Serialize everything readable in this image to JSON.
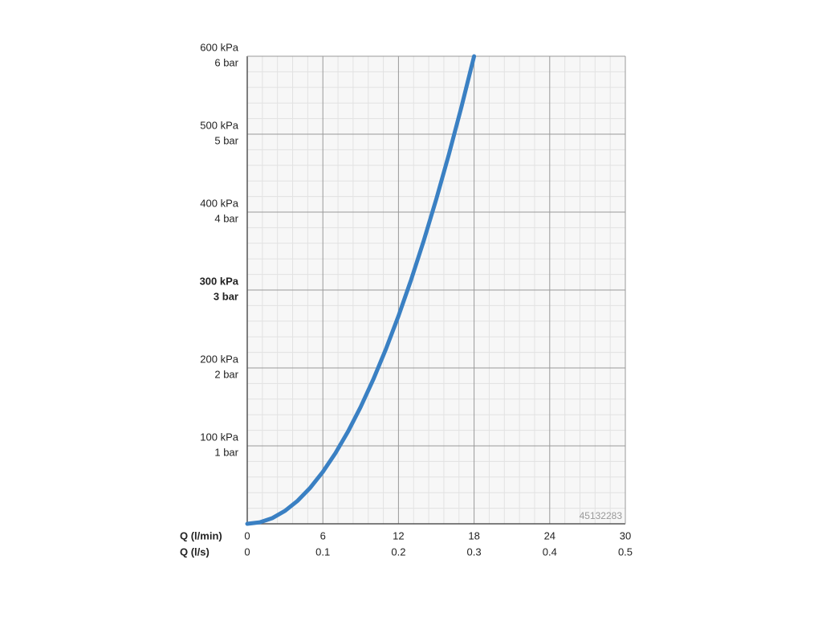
{
  "chart_data": {
    "type": "line",
    "x_label": "Q (l/min)",
    "x2_label": "Q (l/s)",
    "x": [
      0,
      1,
      2,
      3,
      4,
      5,
      6,
      7,
      8,
      9,
      10,
      11,
      12,
      13,
      14,
      15,
      16,
      17,
      18
    ],
    "series": [
      {
        "color": "#3a80c3",
        "values": [
          0,
          1.9,
          7.4,
          16.7,
          29.6,
          46.3,
          66.7,
          90.7,
          118.5,
          150,
          185.2,
          224.1,
          266.7,
          313,
          363,
          416.7,
          474.1,
          535.2,
          600
        ]
      }
    ],
    "xlim": [
      0,
      30
    ],
    "ylim": [
      0,
      600
    ],
    "xticks": [
      0,
      6,
      12,
      18,
      24,
      30
    ],
    "x2ticks": [
      {
        "value": 0,
        "label": "0"
      },
      {
        "value": 6,
        "label": "0.1"
      },
      {
        "value": 12,
        "label": "0.2"
      },
      {
        "value": 18,
        "label": "0.3"
      },
      {
        "value": 24,
        "label": "0.4"
      },
      {
        "value": 30,
        "label": "0.5"
      }
    ],
    "yticks": [
      {
        "value": 100,
        "label": "100 kPa"
      },
      {
        "value": 200,
        "label": "200 kPa"
      },
      {
        "value": 300,
        "label": "300 kPa"
      },
      {
        "value": 400,
        "label": "400 kPa"
      },
      {
        "value": 500,
        "label": "500 kPa"
      },
      {
        "value": 600,
        "label": "600 kPa"
      }
    ],
    "ybar_ticks": [
      {
        "value": 100,
        "label": "1 bar"
      },
      {
        "value": 200,
        "label": "2 bar"
      },
      {
        "value": 300,
        "label": "3 bar"
      },
      {
        "value": 400,
        "label": "4 bar"
      },
      {
        "value": 500,
        "label": "5 bar"
      },
      {
        "value": 600,
        "label": "6 bar"
      }
    ],
    "highlight_ytick": 300,
    "minor_xticks": [
      1.2,
      2.4,
      3.6,
      4.8,
      7.2,
      8.4,
      9.6,
      10.8,
      13.2,
      14.4,
      15.6,
      16.8,
      19.2,
      20.4,
      21.6,
      22.8,
      25.2,
      26.4,
      27.6,
      28.8
    ],
    "minor_yticks": [
      20,
      40,
      60,
      80,
      120,
      140,
      160,
      180,
      220,
      240,
      260,
      280,
      320,
      340,
      360,
      380,
      420,
      440,
      460,
      480,
      520,
      540,
      560,
      580
    ],
    "grid": true,
    "watermark": "45132283"
  }
}
